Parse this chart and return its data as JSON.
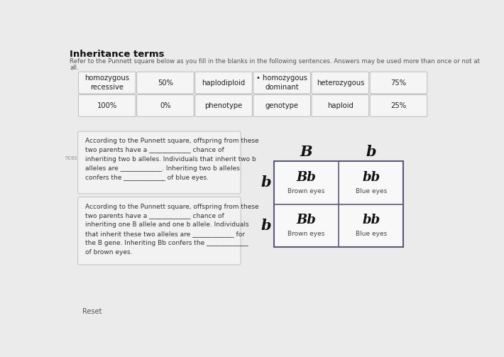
{
  "title": "Inheritance terms",
  "subtitle_line1": "Refer to the Punnett square below as you fill in the blanks in the following sentences. Answers may be used more than once or not at",
  "subtitle_line2": "all.",
  "bg_color": "#ebebeb",
  "box_facecolor": "#f5f5f5",
  "box_edgecolor": "#bbbbbb",
  "word_bank_row1": [
    "homozygous\nrecessive",
    "50%",
    "haplodiploid",
    "• homozygous\ndominant",
    "heterozygous",
    "75%"
  ],
  "word_bank_row2": [
    "100%",
    "0%",
    "phenotype",
    "genotype",
    "haploid",
    "25%"
  ],
  "text1_lines": "According to the Punnett square, offspring from these\ntwo parents have a _____________ chance of\ninheriting two b alleles. Individuals that inherit two b\nalleles are _____________. Inheriting two b alleles\nconfers the _____________ of blue eyes.",
  "text2_lines": "According to the Punnett square, offspring from these\ntwo parents have a _____________ chance of\ninheriting one B allele and one b allele. Individuals\nthat inherit these two alleles are _____________ for\nthe B gene. Inheriting Bb confers the _____________\nof brown eyes.",
  "punnett_col_headers": [
    "B",
    "b"
  ],
  "punnett_row_labels": [
    "b",
    "b"
  ],
  "punnett_cells": [
    [
      "Bb",
      "bb"
    ],
    [
      "Bb",
      "bb"
    ]
  ],
  "punnett_sublabels": [
    [
      "Brown eyes",
      "Blue eyes"
    ],
    [
      "Brown eyes",
      "Blue eyes"
    ]
  ],
  "reset_label": "Reset",
  "title_color": "#111111",
  "subtitle_color": "#555555",
  "text_color": "#333333",
  "punnett_border_color": "#5a5a7a",
  "nces_label": "nces"
}
